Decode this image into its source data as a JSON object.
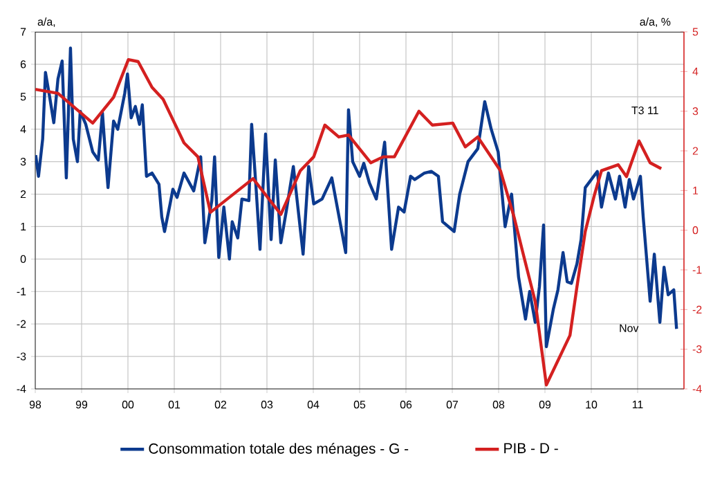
{
  "chart_data": {
    "type": "line",
    "ylabel": "a/a,",
    "y2label": "a/a, %",
    "annotations": [
      "T3 11",
      "Nov"
    ],
    "xlim": [
      1998,
      2012
    ],
    "xticks": [
      {
        "value": 1998,
        "label": "98"
      },
      {
        "value": 1999,
        "label": "99"
      },
      {
        "value": 2000,
        "label": "00"
      },
      {
        "value": 2001,
        "label": "01"
      },
      {
        "value": 2002,
        "label": "02"
      },
      {
        "value": 2003,
        "label": "03"
      },
      {
        "value": 2004,
        "label": "04"
      },
      {
        "value": 2005,
        "label": "05"
      },
      {
        "value": 2006,
        "label": "06"
      },
      {
        "value": 2007,
        "label": "07"
      },
      {
        "value": 2008,
        "label": "08"
      },
      {
        "value": 2009,
        "label": "09"
      },
      {
        "value": 2010,
        "label": "10"
      },
      {
        "value": 2011,
        "label": "11"
      }
    ],
    "ylim": [
      -4,
      7
    ],
    "yticks": [
      -4,
      -3,
      -2,
      -1,
      0,
      1,
      2,
      3,
      4,
      5,
      6,
      7
    ],
    "y2lim": [
      -4,
      5
    ],
    "y2ticks": [
      -4,
      -3,
      -2,
      -1,
      0,
      1,
      2,
      3,
      4,
      5
    ],
    "grid": true,
    "legend": "bottom",
    "marker": "none",
    "line_style": "solid",
    "series": [
      {
        "name": "Consommation totale des ménages - G -",
        "color": "#0c3a8e",
        "x": [
          1998.01,
          1998.07,
          1998.16,
          1998.22,
          1998.31,
          1998.4,
          1998.49,
          1998.58,
          1998.67,
          1998.76,
          1998.82,
          1998.91,
          1998.97,
          1999.09,
          1999.24,
          1999.36,
          1999.45,
          1999.51,
          1999.57,
          1999.69,
          1999.78,
          1999.93,
          1999.99,
          2000.07,
          2000.16,
          2000.25,
          2000.31,
          2000.4,
          2000.52,
          2000.67,
          2000.73,
          2000.79,
          2000.91,
          2000.97,
          2001.06,
          2001.21,
          2001.42,
          2001.57,
          2001.66,
          2001.81,
          2001.87,
          2001.96,
          2002.07,
          2002.19,
          2002.25,
          2002.37,
          2002.46,
          2002.61,
          2002.67,
          2002.76,
          2002.85,
          2002.97,
          2003.09,
          2003.18,
          2003.3,
          2003.42,
          2003.57,
          2003.78,
          2003.9,
          2004.01,
          2004.19,
          2004.4,
          2004.7,
          2004.76,
          2004.85,
          2005.0,
          2005.09,
          2005.21,
          2005.36,
          2005.54,
          2005.69,
          2005.84,
          2005.96,
          2006.1,
          2006.19,
          2006.4,
          2006.55,
          2006.7,
          2006.79,
          2007.04,
          2007.16,
          2007.34,
          2007.55,
          2007.7,
          2007.84,
          2007.99,
          2008.14,
          2008.28,
          2008.43,
          2008.58,
          2008.67,
          2008.79,
          2008.88,
          2008.97,
          2009.03,
          2009.18,
          2009.28,
          2009.39,
          2009.48,
          2009.57,
          2009.69,
          2009.78,
          2009.87,
          2010.13,
          2010.22,
          2010.37,
          2010.52,
          2010.61,
          2010.73,
          2010.82,
          2010.91,
          2011.06,
          2011.12,
          2011.27,
          2011.36,
          2011.48,
          2011.57,
          2011.66,
          2011.78,
          2011.84
        ],
        "values": [
          3.2,
          2.55,
          3.7,
          5.75,
          5.0,
          4.2,
          5.55,
          6.1,
          2.5,
          6.5,
          3.7,
          3.0,
          4.55,
          4.15,
          3.3,
          3.05,
          4.5,
          3.3,
          2.2,
          4.25,
          4.0,
          5.1,
          5.7,
          4.35,
          4.7,
          4.15,
          4.75,
          2.55,
          2.65,
          2.3,
          1.3,
          0.85,
          1.7,
          2.15,
          1.9,
          2.65,
          2.1,
          3.15,
          0.5,
          1.8,
          3.15,
          0.05,
          1.6,
          0.0,
          1.15,
          0.65,
          1.85,
          1.8,
          4.15,
          2.3,
          0.3,
          3.85,
          0.6,
          3.05,
          0.5,
          1.5,
          2.85,
          0.15,
          2.85,
          1.7,
          1.85,
          2.5,
          0.2,
          4.6,
          3.0,
          2.55,
          2.95,
          2.35,
          1.85,
          3.6,
          0.3,
          1.6,
          1.45,
          2.55,
          2.45,
          2.65,
          2.7,
          2.55,
          1.15,
          0.85,
          2.0,
          3.0,
          3.4,
          4.85,
          4.0,
          3.3,
          1.0,
          2.0,
          -0.55,
          -1.85,
          -1.0,
          -1.95,
          -0.85,
          1.05,
          -2.7,
          -1.55,
          -0.95,
          0.2,
          -0.7,
          -0.75,
          -0.15,
          0.6,
          2.2,
          2.7,
          1.6,
          2.65,
          1.85,
          2.55,
          1.6,
          2.45,
          1.85,
          2.55,
          1.3,
          -1.3,
          0.15,
          -1.95,
          -0.25,
          -1.1,
          -0.95,
          -2.15
        ]
      },
      {
        "name": "PIB - D -",
        "color": "#d42020",
        "axis": "y2",
        "x": [
          1998.0,
          1998.49,
          1999.24,
          1999.69,
          2000.01,
          2000.22,
          2000.52,
          2000.76,
          2001.21,
          2001.51,
          2001.78,
          2002.7,
          2003.3,
          2003.72,
          2004.01,
          2004.25,
          2004.55,
          2004.76,
          2005.24,
          2005.51,
          2005.75,
          2006.28,
          2006.57,
          2007.01,
          2007.28,
          2007.55,
          2008.04,
          2008.34,
          2008.52,
          2008.79,
          2009.03,
          2009.54,
          2009.69,
          2009.87,
          2010.07,
          2010.22,
          2010.58,
          2010.76,
          2011.03,
          2011.27,
          2011.51
        ],
        "values": [
          3.55,
          3.45,
          2.7,
          3.35,
          4.3,
          4.25,
          3.6,
          3.3,
          2.2,
          1.85,
          0.45,
          1.3,
          0.4,
          1.5,
          1.85,
          2.65,
          2.35,
          2.4,
          1.7,
          1.85,
          1.85,
          3.0,
          2.65,
          2.7,
          2.1,
          2.35,
          1.5,
          0.3,
          -0.55,
          -1.8,
          -3.9,
          -2.65,
          -1.43,
          -0.03,
          0.9,
          1.5,
          1.65,
          1.35,
          2.25,
          1.7,
          1.55
        ]
      }
    ]
  }
}
